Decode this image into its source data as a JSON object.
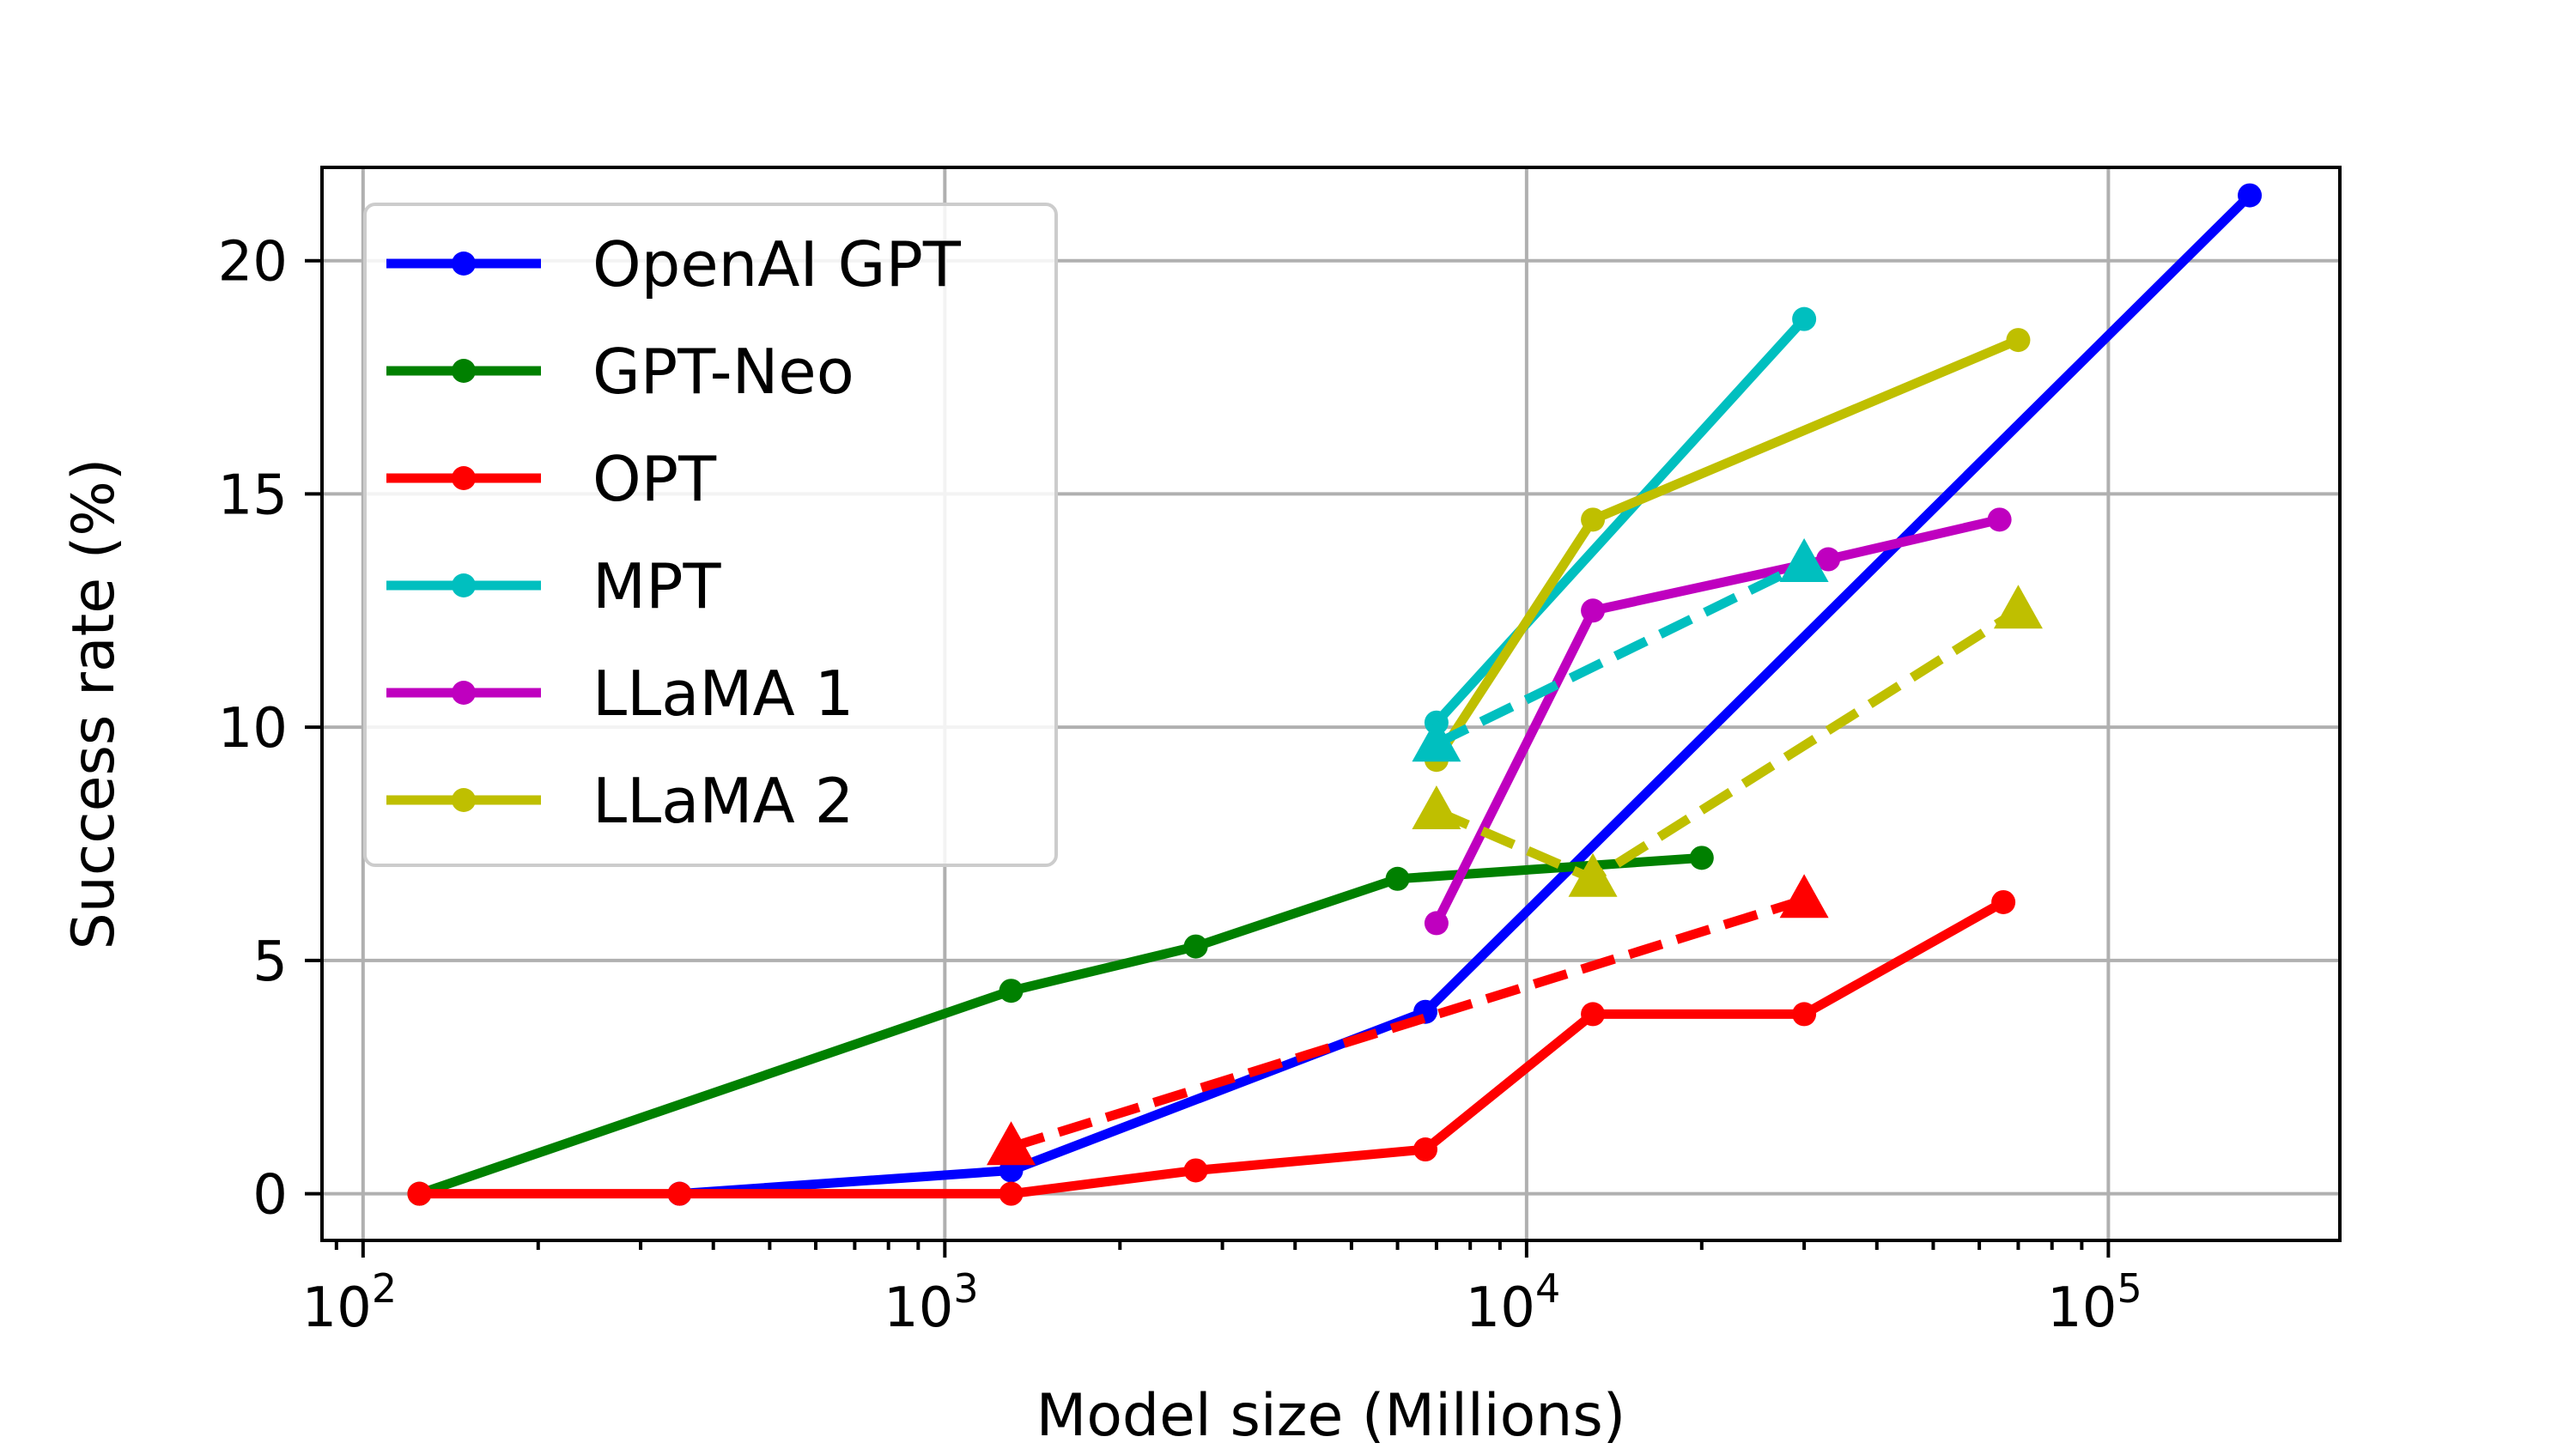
{
  "chart_data": {
    "type": "line",
    "xlabel": "Model size (Millions)",
    "ylabel": "Success rate (%)",
    "x_scale": "log",
    "xlim": [
      85,
      250000
    ],
    "ylim": [
      -1,
      22
    ],
    "x_ticks": [
      {
        "value": 100,
        "label": "10",
        "exp": "2"
      },
      {
        "value": 1000,
        "label": "10",
        "exp": "3"
      },
      {
        "value": 10000,
        "label": "10",
        "exp": "4"
      },
      {
        "value": 100000,
        "label": "10",
        "exp": "5"
      }
    ],
    "y_ticks": [
      0,
      5,
      10,
      15,
      20
    ],
    "grid": true,
    "legend_position": "top-left",
    "series": [
      {
        "name": "OpenAI GPT",
        "color": "#0000ff",
        "style": "solid",
        "marker": "circle",
        "points": [
          [
            350,
            0.0
          ],
          [
            1300,
            0.5
          ],
          [
            6700,
            3.9
          ],
          [
            175000,
            21.4
          ]
        ]
      },
      {
        "name": "GPT-Neo",
        "color": "#008000",
        "style": "solid",
        "marker": "circle",
        "points": [
          [
            125,
            0.0
          ],
          [
            1300,
            4.35
          ],
          [
            2700,
            5.3
          ],
          [
            6000,
            6.75
          ],
          [
            20000,
            7.2
          ]
        ]
      },
      {
        "name": "OPT",
        "color": "#ff0000",
        "style": "solid",
        "marker": "circle",
        "points": [
          [
            125,
            0.0
          ],
          [
            350,
            0.0
          ],
          [
            1300,
            0.0
          ],
          [
            2700,
            0.5
          ],
          [
            6700,
            0.95
          ],
          [
            13000,
            3.85
          ],
          [
            30000,
            3.85
          ],
          [
            66000,
            6.25
          ]
        ]
      },
      {
        "name": "MPT",
        "color": "#00bfbf",
        "style": "solid",
        "marker": "circle",
        "points": [
          [
            7000,
            10.1
          ],
          [
            30000,
            18.75
          ]
        ]
      },
      {
        "name": "LLaMA 1",
        "color": "#bf00bf",
        "style": "solid",
        "marker": "circle",
        "points": [
          [
            7000,
            5.8
          ],
          [
            13000,
            12.5
          ],
          [
            33000,
            13.6
          ],
          [
            65000,
            14.45
          ]
        ]
      },
      {
        "name": "LLaMA 2",
        "color": "#bfbf00",
        "style": "solid",
        "marker": "circle",
        "points": [
          [
            7000,
            9.3
          ],
          [
            13000,
            14.45
          ],
          [
            70000,
            18.3
          ]
        ]
      },
      {
        "name": "",
        "color": "#ff0000",
        "style": "dashed",
        "marker": "triangle",
        "points": [
          [
            1300,
            1.0
          ],
          [
            30000,
            6.3
          ]
        ]
      },
      {
        "name": "",
        "color": "#00bfbf",
        "style": "dashed",
        "marker": "triangle",
        "points": [
          [
            7000,
            9.65
          ],
          [
            30000,
            13.5
          ]
        ]
      },
      {
        "name": "",
        "color": "#bfbf00",
        "style": "dashed",
        "marker": "triangle",
        "points": [
          [
            7000,
            8.2
          ],
          [
            13000,
            6.75
          ],
          [
            70000,
            12.5
          ]
        ]
      }
    ]
  }
}
